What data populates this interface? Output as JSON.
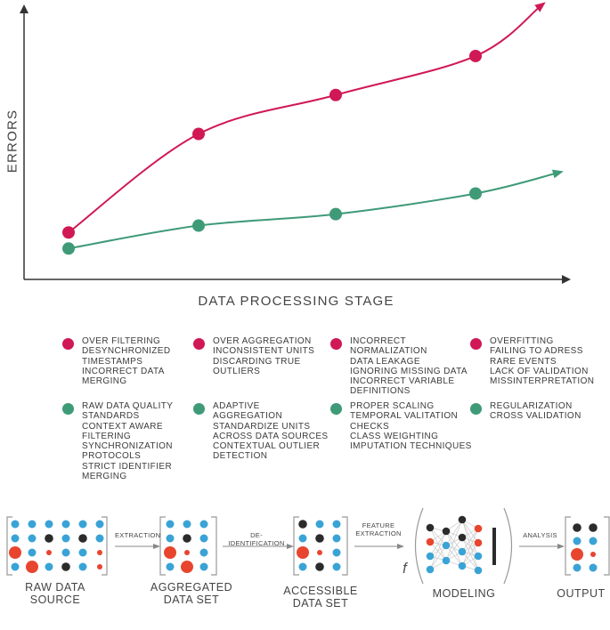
{
  "chart_data": {
    "type": "line",
    "xlabel": "DATA PROCESSING STAGE",
    "ylabel": "ERRORS",
    "x": [
      1,
      2,
      3,
      4
    ],
    "series": [
      {
        "key": "red",
        "color": "#d01855",
        "values": [
          1.0,
          5.3,
          7.0,
          8.7
        ]
      },
      {
        "key": "green",
        "color": "#3f9a78",
        "values": [
          0.3,
          1.3,
          1.8,
          2.7
        ]
      }
    ],
    "grid": false,
    "legend": "none"
  },
  "legend": {
    "red_color": "#d01855",
    "green_color": "#3f9a78",
    "red": [
      [
        "OVER FILTERING",
        "DESYNCHRONIZED",
        "TIMESTAMPS",
        "INCORRECT DATA",
        "MERGING"
      ],
      [
        "OVER AGGREGATION",
        "INCONSISTENT UNITS",
        "DISCARDING TRUE",
        "OUTLIERS"
      ],
      [
        "INCORRECT",
        "NORMALIZATION",
        "DATA LEAKAGE",
        "IGNORING MISSING DATA",
        "INCORRECT VARIABLE",
        "DEFINITIONS"
      ],
      [
        "OVERFITTING",
        "FAILING TO ADRESS",
        "RARE EVENTS",
        "LACK OF VALIDATION",
        "MISSINTERPRETATION"
      ]
    ],
    "green": [
      [
        "RAW DATA QUALITY",
        "STANDARDS",
        "CONTEXT AWARE",
        "FILTERING",
        "SYNCHRONIZATION",
        "PROTOCOLS",
        "STRICT IDENTIFIER",
        "MERGING"
      ],
      [
        "ADAPTIVE",
        "AGGREGATION",
        "STANDARDIZE UNITS",
        "ACROSS DATA SOURCES",
        "CONTEXTUAL OUTLIER",
        "DETECTION"
      ],
      [
        "PROPER SCALING",
        "TEMPORAL VALITATION",
        "CHECKS",
        "CLASS WEIGHTING",
        "IMPUTATION TECHNIQUES"
      ],
      [
        "REGULARIZATION",
        "CROSS VALIDATION"
      ]
    ]
  },
  "pipeline": {
    "stages": [
      [
        "RAW DATA",
        "SOURCE"
      ],
      [
        "AGGREGATED",
        "DATA SET"
      ],
      [
        "ACCESSIBLE",
        "DATA SET"
      ],
      [
        "MODELING"
      ],
      [
        "OUTPUT"
      ]
    ],
    "arrows": [
      [
        "EXTRACTION"
      ],
      [
        "DE-IDENTIFICATION"
      ],
      [
        "FEATURE",
        "EXTRACTION"
      ],
      [
        "ANALYSIS"
      ]
    ],
    "function_symbol": "f",
    "colors": {
      "blue": "#3aa3d6",
      "red": "#e8452f",
      "dark": "#2b2b2b"
    }
  }
}
